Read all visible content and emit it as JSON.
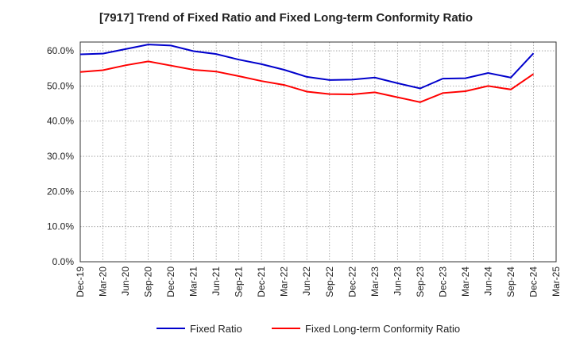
{
  "chart_data": {
    "type": "line",
    "title": "[7917]  Trend of Fixed Ratio and Fixed Long-term Conformity Ratio",
    "x": [
      "Dec-19",
      "Mar-20",
      "Jun-20",
      "Sep-20",
      "Dec-20",
      "Mar-21",
      "Jun-21",
      "Sep-21",
      "Dec-21",
      "Mar-22",
      "Jun-22",
      "Sep-22",
      "Dec-22",
      "Mar-23",
      "Jun-23",
      "Sep-23",
      "Dec-23",
      "Mar-24",
      "Jun-24",
      "Sep-24",
      "Dec-24"
    ],
    "x_ticks": [
      "Dec-19",
      "Mar-20",
      "Jun-20",
      "Sep-20",
      "Dec-20",
      "Mar-21",
      "Jun-21",
      "Sep-21",
      "Dec-21",
      "Mar-22",
      "Jun-22",
      "Sep-22",
      "Dec-22",
      "Mar-23",
      "Jun-23",
      "Sep-23",
      "Dec-23",
      "Mar-24",
      "Jun-24",
      "Sep-24",
      "Dec-24",
      "Mar-25"
    ],
    "y_ticks": [
      "0.0%",
      "10.0%",
      "20.0%",
      "30.0%",
      "40.0%",
      "50.0%",
      "60.0%"
    ],
    "ylim": [
      0,
      62.5
    ],
    "grid": true,
    "legend_position": "bottom",
    "series": [
      {
        "name": "Fixed Ratio",
        "color": "#0000cc",
        "values": [
          59.0,
          59.2,
          60.5,
          61.8,
          61.5,
          59.9,
          59.1,
          57.5,
          56.2,
          54.6,
          52.6,
          51.7,
          51.8,
          52.4,
          50.8,
          49.3,
          52.1,
          52.2,
          53.7,
          52.4,
          59.3
        ]
      },
      {
        "name": "Fixed Long-term Conformity Ratio",
        "color": "#ff0000",
        "values": [
          54.0,
          54.5,
          55.9,
          57.0,
          55.8,
          54.6,
          54.1,
          52.8,
          51.4,
          50.3,
          48.4,
          47.7,
          47.6,
          48.2,
          46.8,
          45.4,
          48.0,
          48.5,
          50.0,
          49.0,
          53.4
        ]
      }
    ]
  }
}
